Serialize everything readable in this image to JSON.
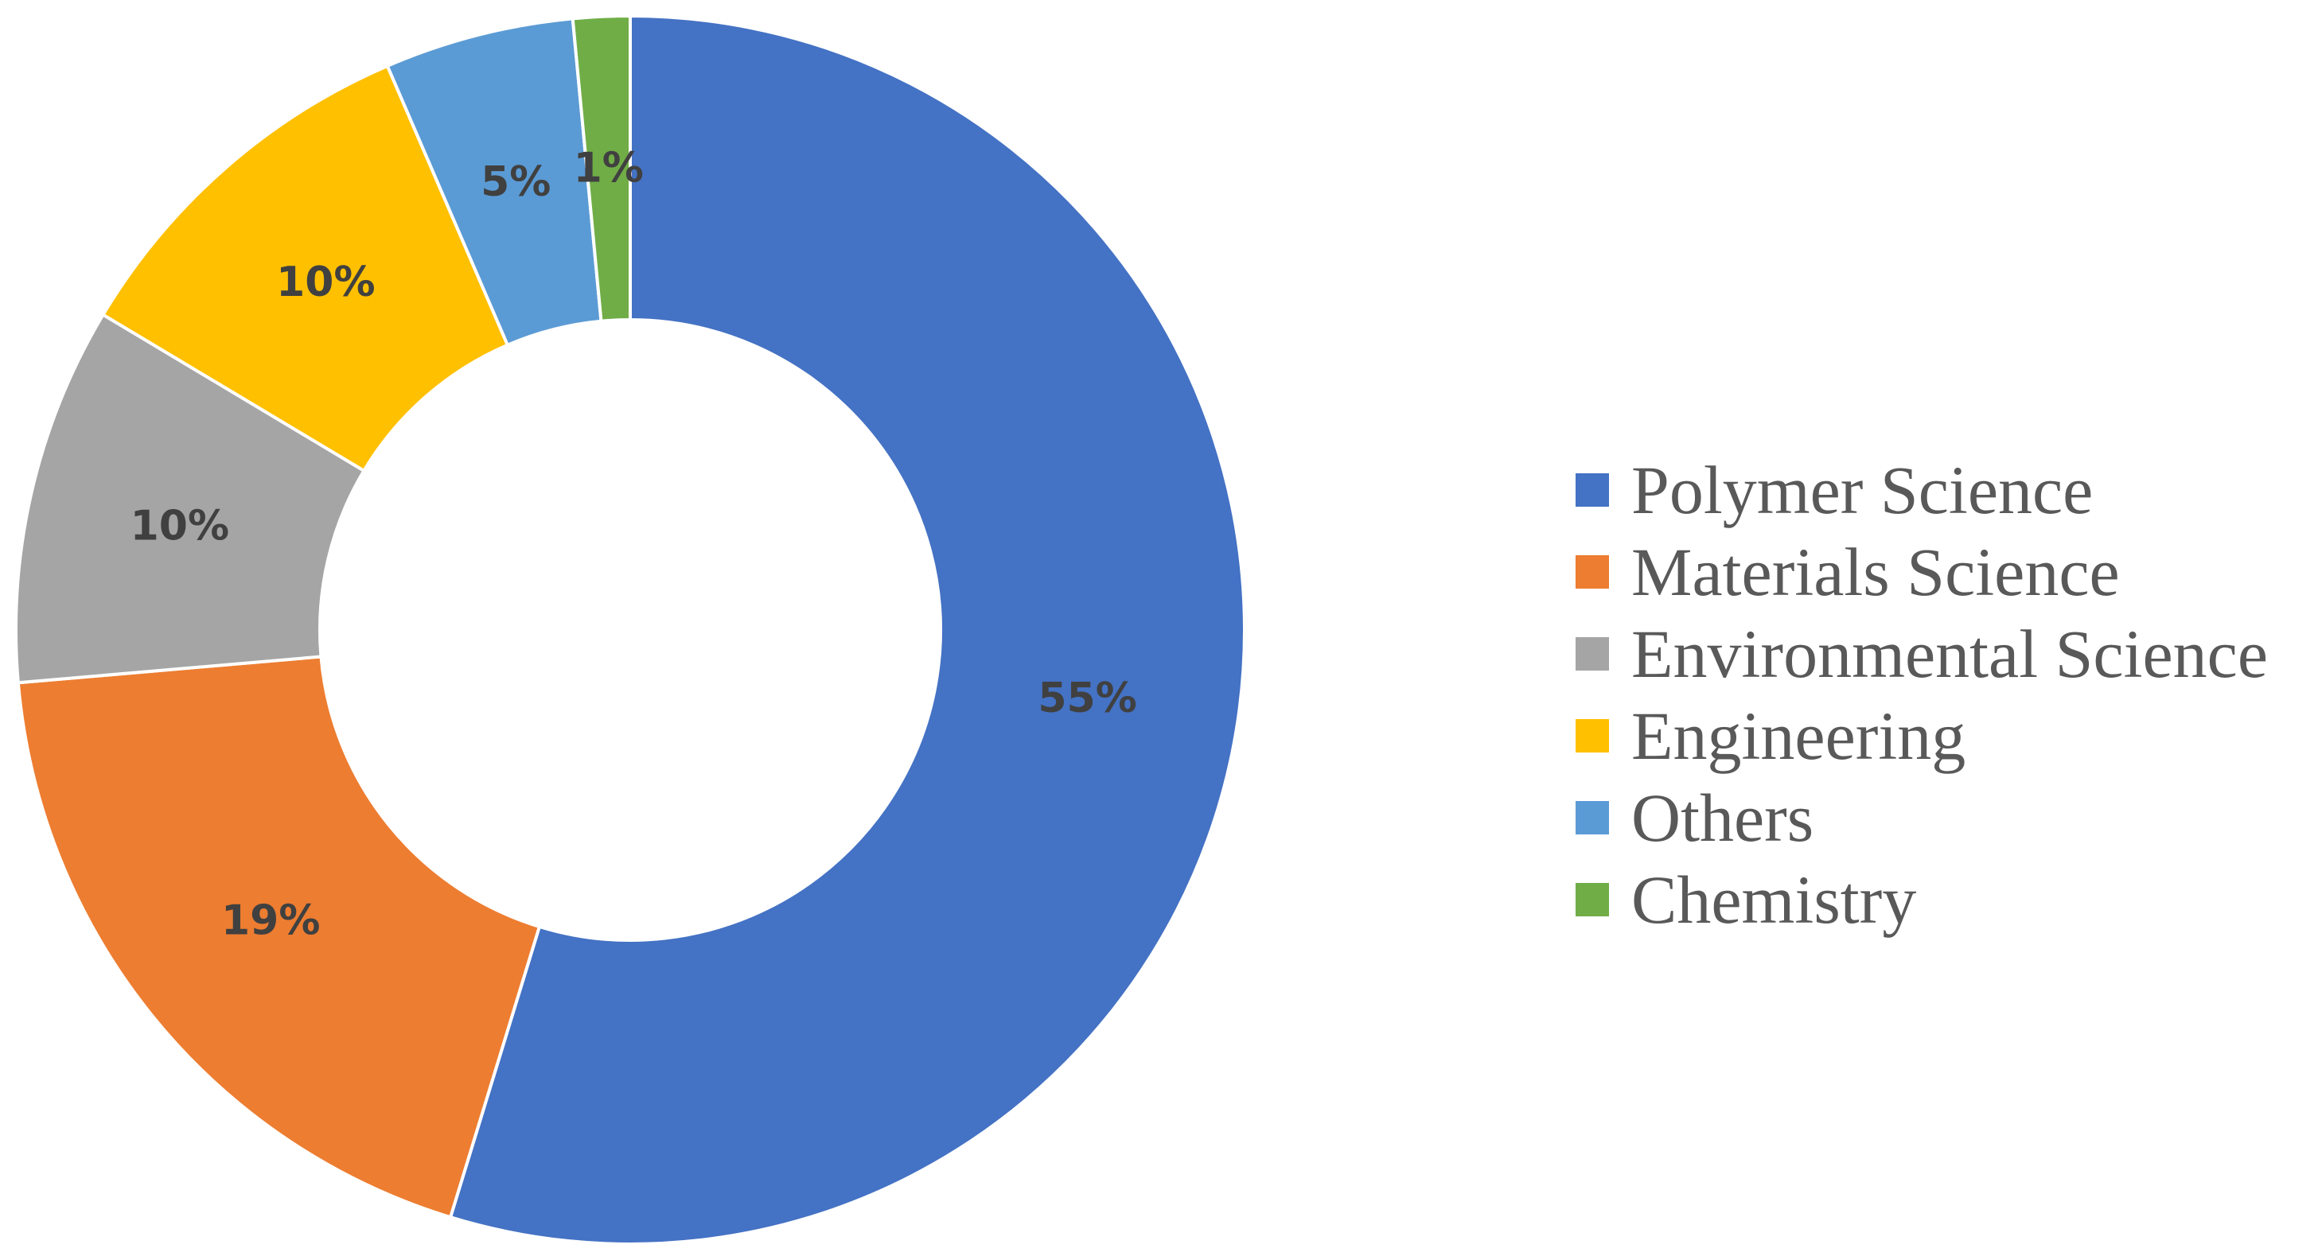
{
  "chart_data": {
    "type": "pie",
    "donut": true,
    "title": "",
    "start_angle_deg": 0,
    "direction": "clockwise",
    "legend_position": "right",
    "slices": [
      {
        "name": "Polymer Science",
        "value": 55,
        "label": "55%",
        "color": "#4472C4"
      },
      {
        "name": "Materials Science",
        "value": 19,
        "label": "19%",
        "color": "#ED7D31"
      },
      {
        "name": "Environmental Science",
        "value": 10,
        "label": "10%",
        "color": "#A5A5A5"
      },
      {
        "name": "Engineering",
        "value": 10,
        "label": "10%",
        "color": "#FFC000"
      },
      {
        "name": "Others",
        "value": 5,
        "label": "5%",
        "color": "#5B9BD5"
      },
      {
        "name": "Chemistry",
        "value": 1.5,
        "label": "1%",
        "color": "#70AD47"
      }
    ]
  }
}
